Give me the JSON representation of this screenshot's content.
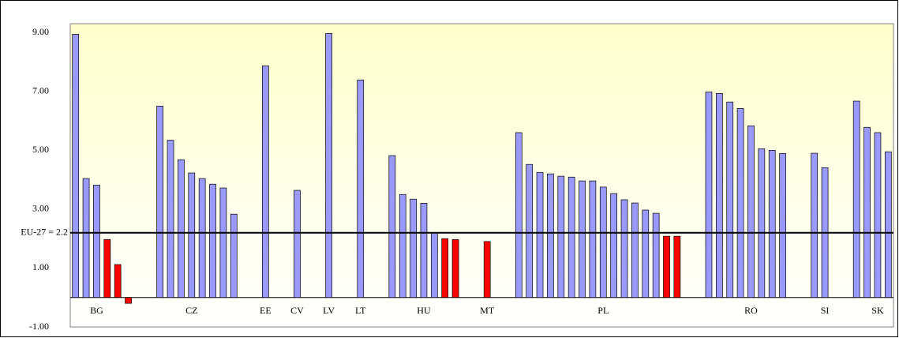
{
  "chart_data": {
    "type": "bar",
    "categories": [
      null,
      null,
      "BG",
      null,
      null,
      null,
      null,
      null,
      null,
      null,
      null,
      "CZ",
      null,
      null,
      null,
      null,
      null,
      null,
      "EE",
      null,
      null,
      "CV",
      null,
      null,
      "LV",
      null,
      null,
      "LT",
      null,
      null,
      null,
      null,
      null,
      "HU",
      null,
      null,
      null,
      null,
      null,
      "MT",
      null,
      null,
      null,
      null,
      null,
      null,
      null,
      null,
      null,
      null,
      "PL",
      null,
      null,
      null,
      null,
      null,
      null,
      null,
      null,
      null,
      null,
      null,
      null,
      null,
      "RO",
      null,
      null,
      null,
      null,
      null,
      null,
      "SI",
      null,
      null,
      null,
      null,
      "SK",
      null
    ],
    "values": [
      8.94,
      4.04,
      3.82,
      1.97,
      1.12,
      -0.2,
      null,
      null,
      6.5,
      5.34,
      4.68,
      4.23,
      4.04,
      3.85,
      3.72,
      2.83,
      null,
      null,
      7.87,
      null,
      null,
      3.64,
      null,
      null,
      8.97,
      null,
      null,
      7.39,
      null,
      null,
      4.82,
      3.5,
      3.34,
      3.2,
      2.2,
      2.0,
      1.97,
      null,
      null,
      1.9,
      null,
      null,
      5.6,
      4.52,
      4.25,
      4.2,
      4.12,
      4.09,
      3.96,
      3.96,
      3.75,
      3.53,
      3.32,
      3.21,
      2.97,
      2.86,
      2.08,
      2.08,
      null,
      null,
      6.98,
      6.93,
      6.64,
      6.42,
      5.83,
      5.05,
      5.0,
      4.89,
      null,
      null,
      4.9,
      4.41,
      null,
      null,
      6.67,
      5.78,
      5.6,
      4.95
    ],
    "colors": [
      "#9999ff",
      "#9999ff",
      "#9999ff",
      "#ff0000",
      "#ff0000",
      "#ff0000",
      null,
      null,
      "#9999ff",
      "#9999ff",
      "#9999ff",
      "#9999ff",
      "#9999ff",
      "#9999ff",
      "#9999ff",
      "#9999ff",
      null,
      null,
      "#9999ff",
      null,
      null,
      "#9999ff",
      null,
      null,
      "#9999ff",
      null,
      null,
      "#9999ff",
      null,
      null,
      "#9999ff",
      "#9999ff",
      "#9999ff",
      "#9999ff",
      "#9999ff",
      "#ff0000",
      "#ff0000",
      null,
      null,
      "#ff0000",
      null,
      null,
      "#9999ff",
      "#9999ff",
      "#9999ff",
      "#9999ff",
      "#9999ff",
      "#9999ff",
      "#9999ff",
      "#9999ff",
      "#9999ff",
      "#9999ff",
      "#9999ff",
      "#9999ff",
      "#9999ff",
      "#9999ff",
      "#ff0000",
      "#ff0000",
      null,
      null,
      "#9999ff",
      "#9999ff",
      "#9999ff",
      "#9999ff",
      "#9999ff",
      "#9999ff",
      "#9999ff",
      "#9999ff",
      null,
      null,
      "#9999ff",
      "#9999ff",
      null,
      null,
      "#9999ff",
      "#9999ff",
      "#9999ff",
      "#9999ff"
    ],
    "ylim": [
      -1,
      9.3
    ],
    "yticks": [
      {
        "value": -1,
        "label": "-1.00"
      },
      {
        "value": 1,
        "label": "1.00"
      },
      {
        "value": 3,
        "label": "3.00"
      },
      {
        "value": 5,
        "label": "5.00"
      },
      {
        "value": 7,
        "label": "7.00"
      },
      {
        "value": 9,
        "label": "9.00"
      }
    ],
    "reference": {
      "value": 2.2,
      "label": "EU-27 = 2.2"
    },
    "grid": false
  }
}
